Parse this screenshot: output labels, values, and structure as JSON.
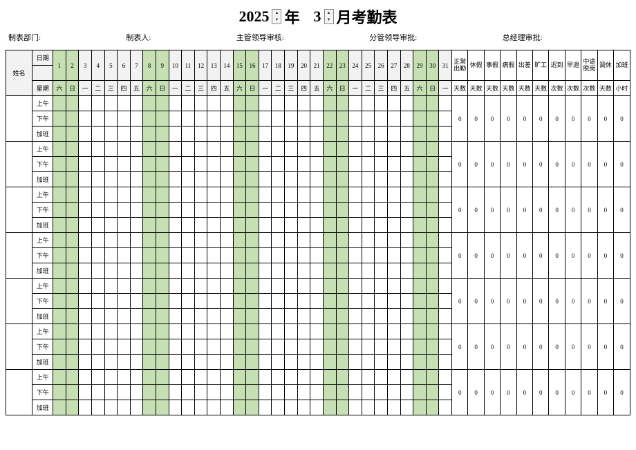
{
  "title": {
    "year": "2025",
    "year_suffix": "年",
    "month": "3",
    "month_suffix": "月考勤表"
  },
  "meta": {
    "dept": "制表部门:",
    "author": "制表人:",
    "supervisor": "主管领导审核:",
    "branch": "分管领导审批:",
    "gm": "总经理审批:"
  },
  "headers": {
    "name": "姓名",
    "date": "日期",
    "weekday": "星期"
  },
  "days": [
    {
      "n": "1",
      "w": "六",
      "wk": true
    },
    {
      "n": "2",
      "w": "日",
      "wk": true
    },
    {
      "n": "3",
      "w": "一",
      "wk": false
    },
    {
      "n": "4",
      "w": "二",
      "wk": false
    },
    {
      "n": "5",
      "w": "三",
      "wk": false
    },
    {
      "n": "6",
      "w": "四",
      "wk": false
    },
    {
      "n": "7",
      "w": "五",
      "wk": false
    },
    {
      "n": "8",
      "w": "六",
      "wk": true
    },
    {
      "n": "9",
      "w": "日",
      "wk": true
    },
    {
      "n": "10",
      "w": "一",
      "wk": false
    },
    {
      "n": "11",
      "w": "二",
      "wk": false
    },
    {
      "n": "12",
      "w": "三",
      "wk": false
    },
    {
      "n": "13",
      "w": "四",
      "wk": false
    },
    {
      "n": "14",
      "w": "五",
      "wk": false
    },
    {
      "n": "15",
      "w": "六",
      "wk": true
    },
    {
      "n": "16",
      "w": "日",
      "wk": true
    },
    {
      "n": "17",
      "w": "一",
      "wk": false
    },
    {
      "n": "18",
      "w": "二",
      "wk": false
    },
    {
      "n": "19",
      "w": "三",
      "wk": false
    },
    {
      "n": "20",
      "w": "四",
      "wk": false
    },
    {
      "n": "21",
      "w": "五",
      "wk": false
    },
    {
      "n": "22",
      "w": "六",
      "wk": true
    },
    {
      "n": "23",
      "w": "日",
      "wk": true
    },
    {
      "n": "24",
      "w": "一",
      "wk": false
    },
    {
      "n": "25",
      "w": "二",
      "wk": false
    },
    {
      "n": "26",
      "w": "三",
      "wk": false
    },
    {
      "n": "27",
      "w": "四",
      "wk": false
    },
    {
      "n": "28",
      "w": "五",
      "wk": false
    },
    {
      "n": "29",
      "w": "六",
      "wk": true
    },
    {
      "n": "30",
      "w": "日",
      "wk": true
    },
    {
      "n": "31",
      "w": "一",
      "wk": false
    }
  ],
  "summary_cols": [
    {
      "label": "正常出勤",
      "unit": "天数"
    },
    {
      "label": "休假",
      "unit": "天数"
    },
    {
      "label": "事假",
      "unit": "天数"
    },
    {
      "label": "病假",
      "unit": "天数"
    },
    {
      "label": "出差",
      "unit": "天数"
    },
    {
      "label": "旷工",
      "unit": "天数"
    },
    {
      "label": "迟到",
      "unit": "次数"
    },
    {
      "label": "早退",
      "unit": "次数"
    },
    {
      "label": "中途脱岗",
      "unit": "次数"
    },
    {
      "label": "调休",
      "unit": "天数"
    },
    {
      "label": "加班",
      "unit": "小时"
    }
  ],
  "periods": [
    "上午",
    "下午",
    "加班"
  ],
  "colors": {
    "header_gray": "#f2f2f2",
    "weekend_green": "#c6e0b4"
  },
  "employee_rows": 7,
  "zero": "0"
}
